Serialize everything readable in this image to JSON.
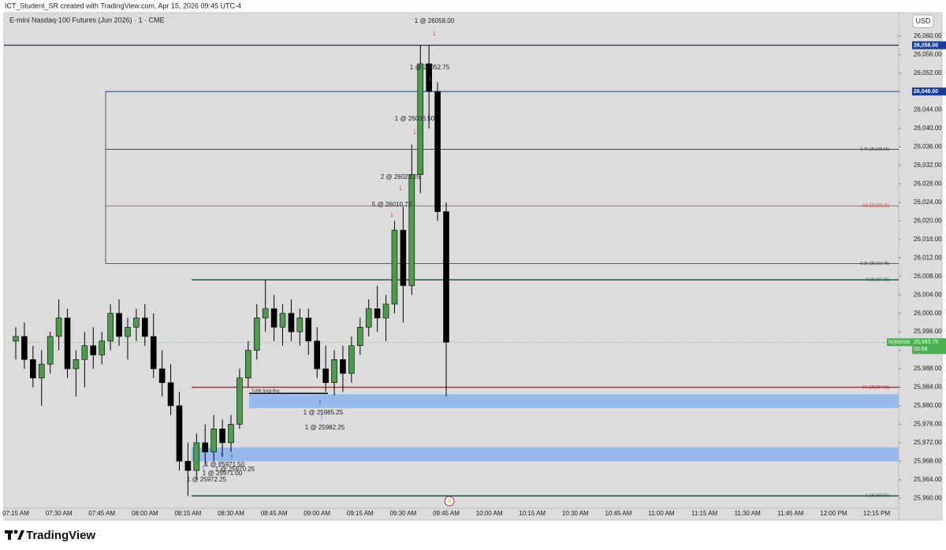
{
  "header": {
    "credit": "ICT_Student_SR created with TradingView.com, Apr 15, 2026 09:45 UTC-4",
    "brand": "TradingView",
    "currency": "USD"
  },
  "chart_data": {
    "type": "candlestick",
    "title": "E-mini Nasdaq-100 Futures (Jun 2026) · 1 · CME",
    "up_color": "#4e9a4e",
    "down_color": "#000000",
    "ylim": [
      25958,
      26062
    ],
    "yticks": [
      {
        "value": 25960,
        "label": "25,960.00"
      },
      {
        "value": 25964,
        "label": "25,964.00"
      },
      {
        "value": 25968,
        "label": "25,968.00"
      },
      {
        "value": 25972,
        "label": "25,972.00"
      },
      {
        "value": 25976,
        "label": "25,976.00"
      },
      {
        "value": 25980,
        "label": "25,980.00"
      },
      {
        "value": 25984,
        "label": "25,984.00"
      },
      {
        "value": 25988,
        "label": "25,988.00"
      },
      {
        "value": 25992,
        "label": "25,992.00"
      },
      {
        "value": 25996,
        "label": "25,996.00"
      },
      {
        "value": 26000,
        "label": "26,000.00"
      },
      {
        "value": 26004,
        "label": "26,004.00"
      },
      {
        "value": 26008,
        "label": "26,008.00"
      },
      {
        "value": 26012,
        "label": "26,012.00"
      },
      {
        "value": 26016,
        "label": "26,016.00"
      },
      {
        "value": 26020,
        "label": "26,020.00"
      },
      {
        "value": 26024,
        "label": "26,024.00"
      },
      {
        "value": 26028,
        "label": "26,028.00"
      },
      {
        "value": 26032,
        "label": "26,032.00"
      },
      {
        "value": 26036,
        "label": "26,036.00"
      },
      {
        "value": 26040,
        "label": "26,040.00"
      },
      {
        "value": 26044,
        "label": "26,044.00"
      },
      {
        "value": 26048,
        "label": "26,048.00"
      },
      {
        "value": 26052,
        "label": "26,052.00"
      },
      {
        "value": 26056,
        "label": "26,056.00"
      },
      {
        "value": 26060,
        "label": "26,060.00"
      }
    ],
    "xticks": [
      "07:15 AM",
      "07:30 AM",
      "07:45 AM",
      "08:00 AM",
      "08:15 AM",
      "08:30 AM",
      "08:45 AM",
      "09:00 AM",
      "09:15 AM",
      "09:30 AM",
      "09:45 AM",
      "10:00 AM",
      "10:15 AM",
      "10:30 AM",
      "10:45 AM",
      "11:00 AM",
      "11:15 AM",
      "11:30 AM",
      "11:45 AM",
      "12:00 PM",
      "12:15 PM"
    ],
    "candles": [
      {
        "x": "07:15 AM",
        "open": 25994,
        "high": 25997,
        "low": 25990,
        "close": 25995
      },
      {
        "x": "07:18 AM",
        "open": 25995,
        "high": 25998,
        "low": 25988,
        "close": 25990
      },
      {
        "x": "07:21 AM",
        "open": 25990,
        "high": 25993,
        "low": 25984,
        "close": 25986
      },
      {
        "x": "07:24 AM",
        "open": 25986,
        "high": 25992,
        "low": 25980,
        "close": 25989
      },
      {
        "x": "07:27 AM",
        "open": 25989,
        "high": 25996,
        "low": 25987,
        "close": 25995
      },
      {
        "x": "07:30 AM",
        "open": 25995,
        "high": 26003,
        "low": 25992,
        "close": 25999
      },
      {
        "x": "07:33 AM",
        "open": 25999,
        "high": 26001,
        "low": 25986,
        "close": 25988
      },
      {
        "x": "07:36 AM",
        "open": 25988,
        "high": 25992,
        "low": 25982,
        "close": 25990
      },
      {
        "x": "07:39 AM",
        "open": 25990,
        "high": 25996,
        "low": 25984,
        "close": 25993
      },
      {
        "x": "07:42 AM",
        "open": 25993,
        "high": 25997,
        "low": 25988,
        "close": 25991
      },
      {
        "x": "07:45 AM",
        "open": 25991,
        "high": 25996,
        "low": 25989,
        "close": 25994
      },
      {
        "x": "07:48 AM",
        "open": 25994,
        "high": 26002,
        "low": 25992,
        "close": 26000
      },
      {
        "x": "07:51 AM",
        "open": 26000,
        "high": 26003,
        "low": 25993,
        "close": 25995
      },
      {
        "x": "07:54 AM",
        "open": 25995,
        "high": 25999,
        "low": 25990,
        "close": 25997
      },
      {
        "x": "07:57 AM",
        "open": 25997,
        "high": 26001,
        "low": 25994,
        "close": 25999
      },
      {
        "x": "08:00 AM",
        "open": 25999,
        "high": 26002,
        "low": 25993,
        "close": 25995
      },
      {
        "x": "08:03 AM",
        "open": 25995,
        "high": 26000,
        "low": 25986,
        "close": 25988
      },
      {
        "x": "08:06 AM",
        "open": 25988,
        "high": 25992,
        "low": 25982,
        "close": 25985
      },
      {
        "x": "08:09 AM",
        "open": 25985,
        "high": 25989,
        "low": 25978,
        "close": 25980
      },
      {
        "x": "08:12 AM",
        "open": 25980,
        "high": 25983,
        "low": 25966,
        "close": 25968
      },
      {
        "x": "08:15 AM",
        "open": 25968,
        "high": 25972,
        "low": 25960.5,
        "close": 25966
      },
      {
        "x": "08:18 AM",
        "open": 25966,
        "high": 25974,
        "low": 25964,
        "close": 25972
      },
      {
        "x": "08:21 AM",
        "open": 25972,
        "high": 25976,
        "low": 25967,
        "close": 25970
      },
      {
        "x": "08:24 AM",
        "open": 25970,
        "high": 25978,
        "low": 25968,
        "close": 25975
      },
      {
        "x": "08:27 AM",
        "open": 25975,
        "high": 25977,
        "low": 25969,
        "close": 25972
      },
      {
        "x": "08:30 AM",
        "open": 25972,
        "high": 25978,
        "low": 25970,
        "close": 25976
      },
      {
        "x": "08:33 AM",
        "open": 25976,
        "high": 25988,
        "low": 25975,
        "close": 25986
      },
      {
        "x": "08:36 AM",
        "open": 25986,
        "high": 25994,
        "low": 25984,
        "close": 25992
      },
      {
        "x": "08:39 AM",
        "open": 25992,
        "high": 26002,
        "low": 25990,
        "close": 25999
      },
      {
        "x": "08:42 AM",
        "open": 25999,
        "high": 26007.25,
        "low": 25996,
        "close": 26001
      },
      {
        "x": "08:45 AM",
        "open": 26001,
        "high": 26004,
        "low": 25994,
        "close": 25997
      },
      {
        "x": "08:48 AM",
        "open": 25997,
        "high": 26002,
        "low": 25993,
        "close": 26000
      },
      {
        "x": "08:51 AM",
        "open": 26000,
        "high": 26003,
        "low": 25994,
        "close": 25996
      },
      {
        "x": "08:54 AM",
        "open": 25996,
        "high": 26001,
        "low": 25993,
        "close": 25999
      },
      {
        "x": "08:57 AM",
        "open": 25999,
        "high": 26001,
        "low": 25991,
        "close": 25994
      },
      {
        "x": "09:00 AM",
        "open": 25994,
        "high": 25997,
        "low": 25986,
        "close": 25988
      },
      {
        "x": "09:03 AM",
        "open": 25988,
        "high": 25993,
        "low": 25983,
        "close": 25985
      },
      {
        "x": "09:06 AM",
        "open": 25985,
        "high": 25992,
        "low": 25982.25,
        "close": 25990
      },
      {
        "x": "09:09 AM",
        "open": 25990,
        "high": 25993,
        "low": 25983,
        "close": 25987
      },
      {
        "x": "09:12 AM",
        "open": 25987,
        "high": 25995,
        "low": 25985,
        "close": 25993
      },
      {
        "x": "09:15 AM",
        "open": 25993,
        "high": 25999,
        "low": 25991,
        "close": 25997
      },
      {
        "x": "09:18 AM",
        "open": 25997,
        "high": 26003,
        "low": 25995,
        "close": 26001
      },
      {
        "x": "09:21 AM",
        "open": 26001,
        "high": 26006,
        "low": 25996,
        "close": 25999
      },
      {
        "x": "09:24 AM",
        "open": 25999,
        "high": 26004,
        "low": 25994,
        "close": 26002
      },
      {
        "x": "09:27 AM",
        "open": 26002,
        "high": 26020,
        "low": 26000,
        "close": 26018
      },
      {
        "x": "09:30 AM",
        "open": 26018,
        "high": 26023,
        "low": 25998,
        "close": 26006
      },
      {
        "x": "09:33 AM",
        "open": 26006,
        "high": 26036.5,
        "low": 26004,
        "close": 26030
      },
      {
        "x": "09:36 AM",
        "open": 26030,
        "high": 26058,
        "low": 26026,
        "close": 26054
      },
      {
        "x": "09:39 AM",
        "open": 26054,
        "high": 26058,
        "low": 26040,
        "close": 26048
      },
      {
        "x": "09:42 AM",
        "open": 26048,
        "high": 26050,
        "low": 26020,
        "close": 26022
      },
      {
        "x": "09:45 AM",
        "open": 26022,
        "high": 26024,
        "low": 25982,
        "close": 25993.75
      }
    ],
    "price_lines": [
      {
        "value": 26058,
        "label": "26,058.00",
        "color": "#1a3a9c"
      },
      {
        "value": 26048,
        "label": "26,048.00",
        "color": "#1a3a9c"
      }
    ],
    "levels": [
      {
        "value": 26035.5,
        "label": "0.75 (26,035.50)",
        "color": "#333333"
      },
      {
        "value": 26023.25,
        "label": "0.5 (26,023.25)",
        "color": "#c0392b"
      },
      {
        "value": 26010.75,
        "label": "0.25 (26,010.75)",
        "color": "#333333"
      },
      {
        "value": 26007.25,
        "label": "0 (26,007.25)",
        "color": "#1b5e45"
      },
      {
        "value": 25984,
        "label": "0.5 (25,984.00)",
        "color": "#c62828"
      },
      {
        "value": 25960.5,
        "label": "1 (25,960.50)",
        "color": "#1b5e45"
      }
    ],
    "zones": [
      {
        "top": 25982.5,
        "bottom": 25979.5
      },
      {
        "top": 25971,
        "bottom": 25968
      }
    ],
    "zone_note": "Turtle Soup Buy",
    "last_price": {
      "symbol": "NQM2026",
      "value": 25993.75,
      "label": "25,993.75",
      "countdown": "00:58"
    },
    "trades": [
      {
        "label": "1 @ 26058.00",
        "side": "sell"
      },
      {
        "label": "1 @ 26052.75",
        "side": "sell"
      },
      {
        "label": "1 @ 26036.50",
        "side": "sell"
      },
      {
        "label": "2 @ 26023.25",
        "side": "sell"
      },
      {
        "label": "5 @ 26010.75",
        "side": "sell"
      },
      {
        "label": "1 @ 25985.25",
        "side": "buy"
      },
      {
        "label": "1 @ 25982.25",
        "side": "buy"
      },
      {
        "label": "1 @ 25971.50",
        "side": "buy"
      },
      {
        "label": "1 @ 25970.25",
        "side": "buy"
      },
      {
        "label": "1 @ 25971.00",
        "side": "buy"
      },
      {
        "label": "1 @ 25972.25",
        "side": "buy"
      }
    ]
  }
}
